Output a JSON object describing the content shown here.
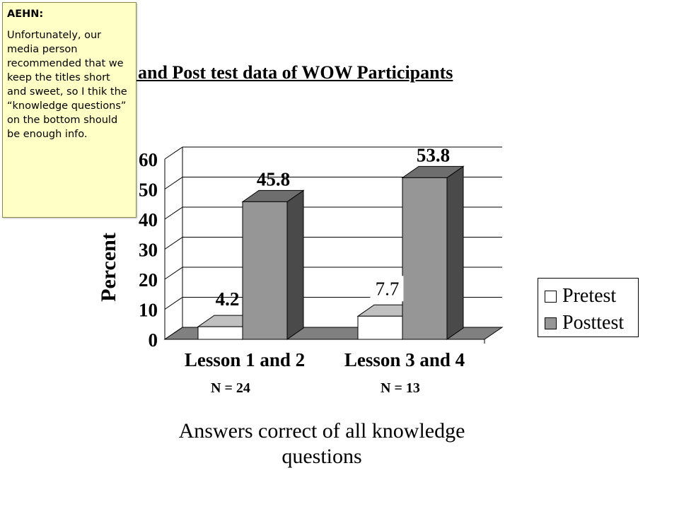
{
  "slide": {
    "title": "Pre and Post test data of WOW Participants"
  },
  "comment": {
    "author": "AEHN:",
    "text": "Unfortunately, our media person recommended that we keep the titles short and sweet, so I thik the “knowledge questions” on the bottom should be enough info."
  },
  "chart_data": {
    "type": "bar",
    "categories": [
      "Lesson 1 and 2",
      "Lesson 3 and 4"
    ],
    "category_notes": [
      "N = 24",
      "N = 13"
    ],
    "series": [
      {
        "name": "Pretest",
        "values": [
          4.2,
          7.7
        ],
        "color": "#ffffff"
      },
      {
        "name": "Posttest",
        "values": [
          45.8,
          53.8
        ],
        "color": "#969696"
      }
    ],
    "ylabel": "Percent",
    "xlabel": "Answers correct of all knowledge questions",
    "ylim": [
      0,
      60
    ],
    "yticks": [
      0,
      10,
      20,
      30,
      40,
      50,
      60
    ],
    "legend_position": "right",
    "grid": true,
    "style": "3d-column",
    "colors": {
      "floor": "#808080",
      "bar_side": "#4a4a4a",
      "bar_top": "#6e6e6e",
      "pretest_top": "#c0c0c0"
    }
  }
}
